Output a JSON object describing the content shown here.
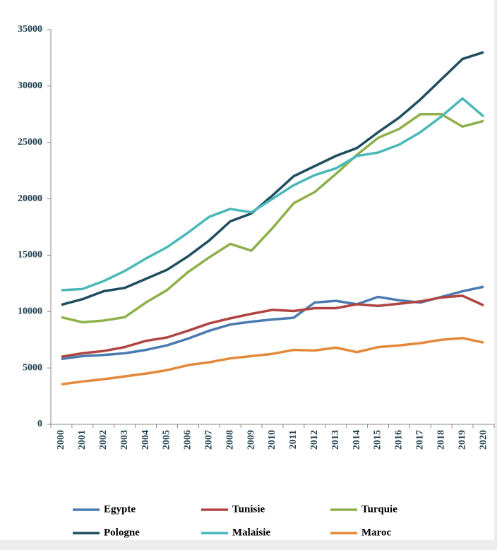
{
  "chart_data": {
    "type": "line",
    "categories": [
      "2000",
      "2001",
      "2002",
      "2003",
      "2004",
      "2005",
      "2006",
      "2007",
      "2008",
      "2009",
      "2010",
      "2011",
      "2012",
      "2013",
      "2014",
      "2015",
      "2016",
      "2017",
      "2018",
      "2019",
      "2020"
    ],
    "ylim": [
      0,
      35000
    ],
    "yticks": [
      0,
      5000,
      10000,
      15000,
      20000,
      25000,
      30000,
      35000
    ],
    "grid": false,
    "legend": "bottom",
    "series": [
      {
        "name": "Egypte",
        "color": "#4a7ab0",
        "values": [
          5800,
          6050,
          6150,
          6300,
          6600,
          7000,
          7600,
          8300,
          8850,
          9100,
          9300,
          9450,
          10800,
          10950,
          10650,
          11300,
          11000,
          10800,
          11300,
          11800,
          12200
        ]
      },
      {
        "name": "Tunisie",
        "color": "#b04440",
        "values": [
          6000,
          6300,
          6500,
          6850,
          7400,
          7700,
          8300,
          8950,
          9400,
          9800,
          10150,
          10050,
          10300,
          10300,
          10650,
          10500,
          10700,
          10900,
          11250,
          11400,
          10550
        ]
      },
      {
        "name": "Turquie",
        "color": "#8db04a",
        "values": [
          9500,
          9050,
          9200,
          9500,
          10800,
          11900,
          13500,
          14800,
          16000,
          15400,
          17400,
          19600,
          20600,
          22200,
          23900,
          25400,
          26200,
          27500,
          27500,
          26400,
          26900
        ]
      },
      {
        "name": "Pologne",
        "color": "#1f4e5f",
        "values": [
          10600,
          11100,
          11800,
          12100,
          12900,
          13700,
          14900,
          16300,
          18000,
          18700,
          20300,
          22000,
          22900,
          23800,
          24500,
          25900,
          27200,
          28800,
          30600,
          32400,
          33000
        ]
      },
      {
        "name": "Malaisie",
        "color": "#4bb8b8",
        "values": [
          11900,
          12000,
          12700,
          13600,
          14700,
          15700,
          17000,
          18400,
          19100,
          18800,
          20000,
          21200,
          22100,
          22700,
          23800,
          24100,
          24800,
          25900,
          27300,
          28900,
          27300
        ]
      },
      {
        "name": "Maroc",
        "color": "#e38838",
        "values": [
          3550,
          3800,
          4000,
          4250,
          4500,
          4800,
          5250,
          5500,
          5850,
          6050,
          6250,
          6600,
          6550,
          6800,
          6400,
          6850,
          7000,
          7200,
          7500,
          7650,
          7250
        ]
      }
    ]
  }
}
